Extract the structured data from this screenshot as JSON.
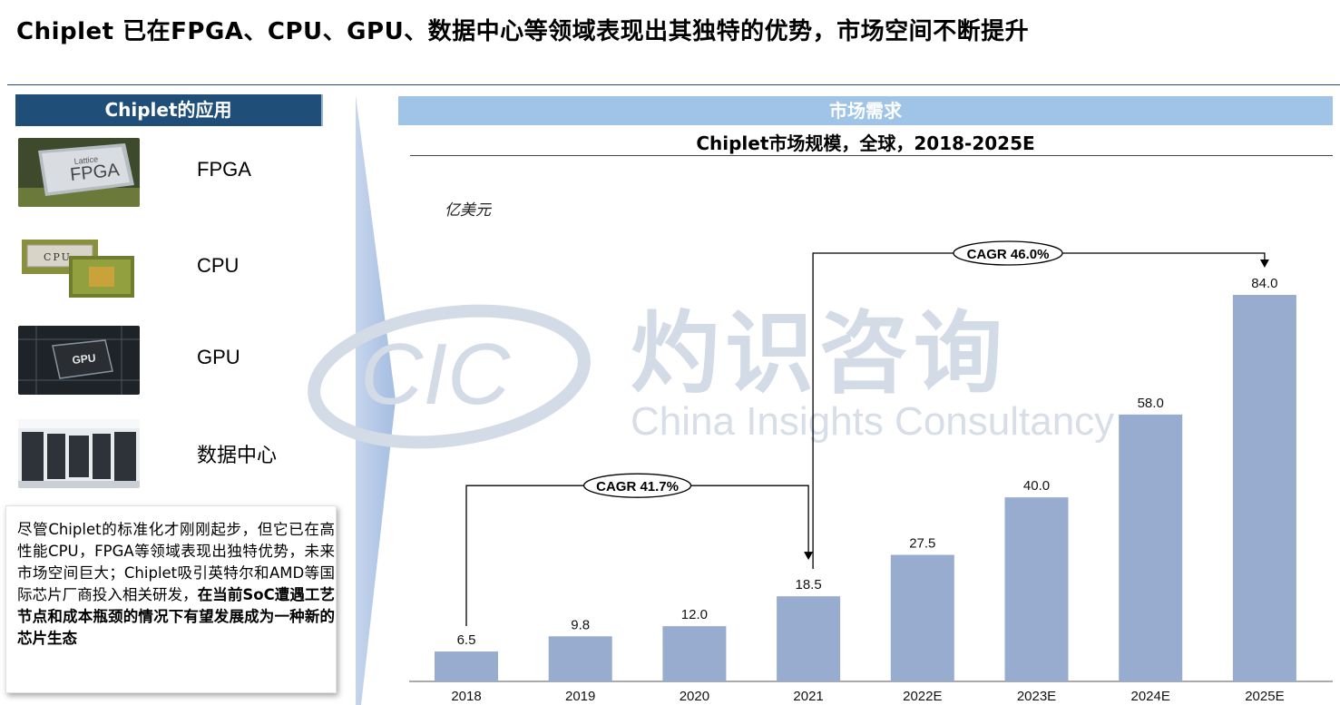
{
  "headline": "Chiplet 已在FPGA、CPU、GPU、数据中心等领域表现出其独特的优势，市场空间不断提升",
  "left_panel": {
    "header": "Chiplet的应用",
    "applications": [
      {
        "label": "FPGA",
        "icon": "fpga-chip-photo",
        "chip_text": "FPGA",
        "chip_brand": "Lattice"
      },
      {
        "label": "CPU",
        "icon": "cpu-chip-photo",
        "chip_text": "CPU"
      },
      {
        "label": "GPU",
        "icon": "gpu-chip-photo",
        "chip_text": "GPU"
      },
      {
        "label": "数据中心",
        "icon": "datacenter-photo"
      }
    ],
    "note_plain": "尽管Chiplet的标准化才刚刚起步，但它已在高性能CPU，FPGA等领域表现出独特优势，未来市场空间巨大；Chiplet吸引英特尔和AMD等国际芯片厂商投入相关研发，",
    "note_bold": "在当前SoC遭遇工艺节点和成本瓶颈的情况下有望发展成为一种新的芯片生态"
  },
  "market_panel": {
    "header": "市场需求",
    "unit": "亿美元"
  },
  "watermark": {
    "logo_text": "CIC",
    "cn": "灼识咨询",
    "en": "China Insights Consultancy"
  },
  "colors": {
    "navy": "#1f4e79",
    "light_blue_header": "#9fc4e7",
    "bar": "#98acd0",
    "watermark": "#d3dbe6"
  },
  "chart_data": {
    "type": "bar",
    "title": "Chiplet市场规模，全球，2018-2025E",
    "ylabel": "亿美元",
    "categories": [
      "2018",
      "2019",
      "2020",
      "2021",
      "2022E",
      "2023E",
      "2024E",
      "2025E"
    ],
    "values": [
      6.5,
      9.8,
      12.0,
      18.5,
      27.5,
      40.0,
      58.0,
      84.0
    ],
    "value_labels": [
      "6.5",
      "9.8",
      "12.0",
      "18.5",
      "27.5",
      "40.0",
      "58.0",
      "84.0"
    ],
    "ylim": [
      0,
      84
    ],
    "grid": false,
    "annotations": [
      {
        "label": "CAGR 41.7%",
        "from": "2018",
        "to": "2021"
      },
      {
        "label": "CAGR 46.0%",
        "from": "2021",
        "to": "2025E"
      }
    ]
  }
}
